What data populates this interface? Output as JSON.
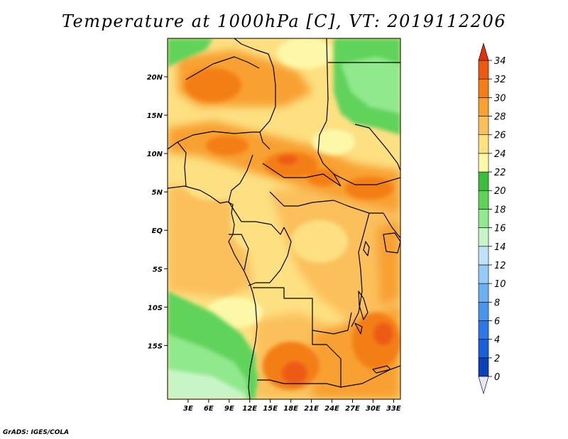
{
  "title": "Temperature at 1000hPa [C], VT: 2019112206",
  "credit": "GrADS: IGES/COLA",
  "map": {
    "variable": "Temperature",
    "level": "1000hPa",
    "units": "C",
    "valid_time": "2019112206",
    "lon_range": [
      0,
      34
    ],
    "lat_range": [
      -22,
      25
    ],
    "lon_ticks": [
      {
        "value": 3,
        "label": "3E"
      },
      {
        "value": 6,
        "label": "6E"
      },
      {
        "value": 9,
        "label": "9E"
      },
      {
        "value": 12,
        "label": "12E"
      },
      {
        "value": 15,
        "label": "15E"
      },
      {
        "value": 18,
        "label": "18E"
      },
      {
        "value": 21,
        "label": "21E"
      },
      {
        "value": 24,
        "label": "24E"
      },
      {
        "value": 27,
        "label": "27E"
      },
      {
        "value": 30,
        "label": "30E"
      },
      {
        "value": 33,
        "label": "33E"
      }
    ],
    "lat_ticks": [
      {
        "value": 20,
        "label": "20N"
      },
      {
        "value": 15,
        "label": "15N"
      },
      {
        "value": 10,
        "label": "10N"
      },
      {
        "value": 5,
        "label": "5N"
      },
      {
        "value": 0,
        "label": "EQ"
      },
      {
        "value": -5,
        "label": "5S"
      },
      {
        "value": -10,
        "label": "10S"
      },
      {
        "value": -15,
        "label": "15S"
      }
    ]
  },
  "colorbar": {
    "levels": [
      "0",
      "2",
      "4",
      "6",
      "8",
      "10",
      "12",
      "14",
      "16",
      "18",
      "20",
      "22",
      "24",
      "26",
      "28",
      "30",
      "32",
      "34"
    ],
    "colors": [
      "#1e1e8c",
      "#0c3fb8",
      "#1a5fd8",
      "#2e78e6",
      "#4a94ee",
      "#6cb0f2",
      "#96cbf6",
      "#bfe2f9",
      "#c8f5c8",
      "#90e98c",
      "#5ed35a",
      "#3cbd3c",
      "#fdf7a8",
      "#fde082",
      "#fbc05c",
      "#f8a030",
      "#f47e18",
      "#ec5a12",
      "#dc3212"
    ],
    "under_color": "#e6e6fa",
    "over_color": "#dc3212"
  }
}
